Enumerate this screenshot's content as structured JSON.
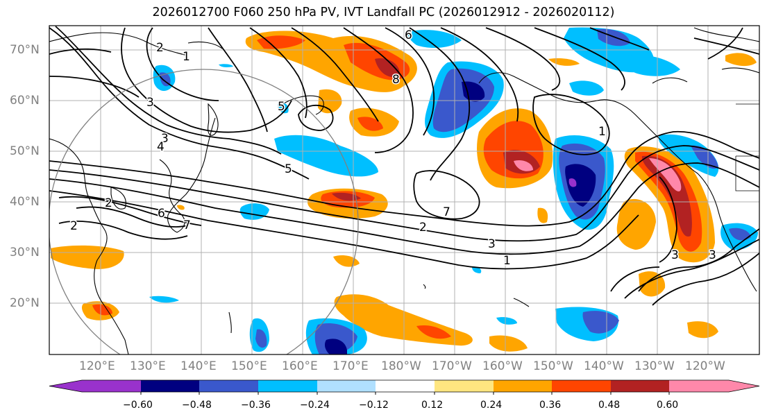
{
  "title": "2026012700 F060 250 hPa PV, IVT Landfall PC (2026012912 - 2026020112)",
  "lat_labels": [
    "70°N",
    "60°N",
    "50°N",
    "40°N",
    "30°N",
    "20°N"
  ],
  "lon_labels": [
    "120°E",
    "130°E",
    "140°E",
    "150°E",
    "160°E",
    "170°E",
    "180°W",
    "170°W",
    "160°W",
    "150°W",
    "140°W",
    "130°W",
    "120°W"
  ],
  "colorbar": {
    "ticks": [
      "−0.60",
      "−0.48",
      "−0.36",
      "−0.24",
      "−0.12",
      "0.12",
      "0.24",
      "0.36",
      "0.48",
      "0.60"
    ],
    "colors": [
      "#9932cc",
      "#000080",
      "#3a58cc",
      "#00bfff",
      "#b0e0ff",
      "#ffffff",
      "#ffe680",
      "#ffa500",
      "#ff4500",
      "#b22222",
      "#ff88aa",
      "#ff88aa"
    ]
  },
  "contour_labels": [
    "6",
    "5",
    "8",
    "2",
    "1",
    "3",
    "3",
    "4",
    "5",
    "7",
    "2",
    "3",
    "1",
    "2",
    "2",
    "6",
    "7",
    "1",
    "3",
    "3"
  ],
  "colors": {
    "axis": "#000000",
    "grid": "#b0b0b0",
    "contour": "#000000",
    "coast": "#000000",
    "circle": "#808080"
  }
}
